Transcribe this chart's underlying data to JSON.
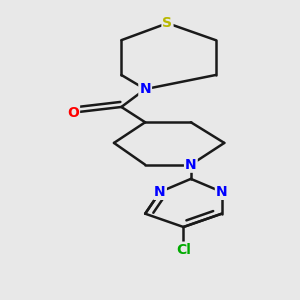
{
  "bg_color": "#e8e8e8",
  "bond_color": "#1a1a1a",
  "N_color": "#0000ff",
  "S_color": "#b8b800",
  "O_color": "#ff0000",
  "Cl_color": "#00aa00",
  "line_width": 1.8,
  "font_size_atom": 10,
  "xlim": [
    0.05,
    0.85
  ],
  "ylim": [
    -0.05,
    1.0
  ]
}
